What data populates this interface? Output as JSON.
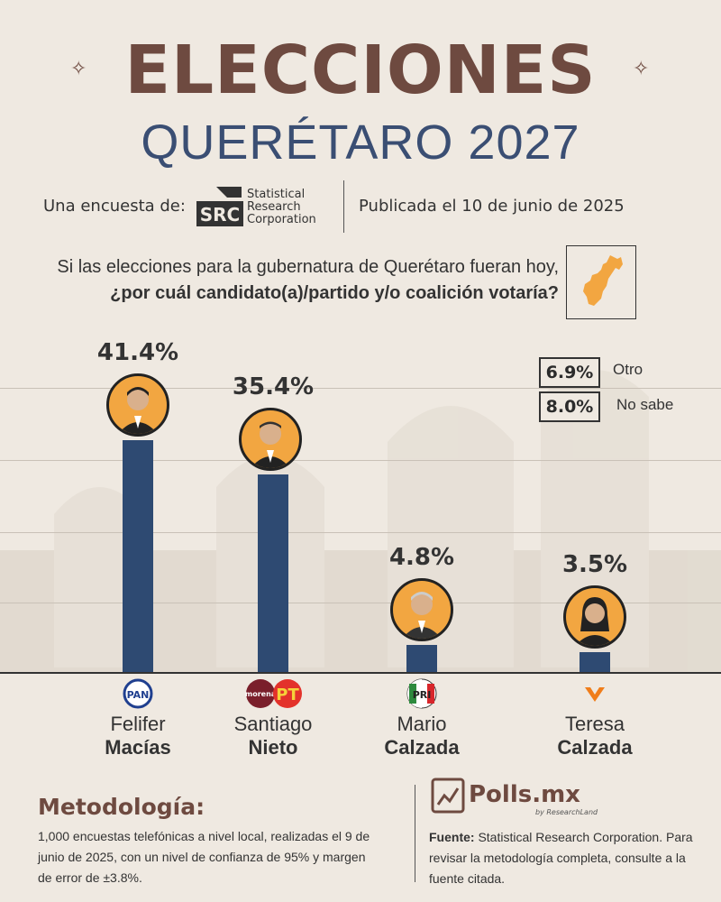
{
  "header": {
    "title_line1": "ELECCIONES",
    "title_line2": "QUERÉTARO 2027",
    "survey_by_label": "Una encuesta de:",
    "logo_letters": "SRC",
    "pollster_line1": "Statistical",
    "pollster_line2": "Research",
    "pollster_line3": "Corporation",
    "published": "Publicada el 10 de junio de 2025"
  },
  "question": {
    "line1": "Si las elecciones para la gubernatura de Querétaro fueran hoy,",
    "line2": "¿por cuál candidato(a)/partido y/o coalición votaría?"
  },
  "other_results": [
    {
      "value": "6.9%",
      "label": "Otro"
    },
    {
      "value": "8.0%",
      "label": "No sabe"
    }
  ],
  "chart_data": {
    "type": "bar",
    "title": "Si las elecciones para la gubernatura de Querétaro fueran hoy, ¿por cuál candidato(a)/partido y/o coalición votaría?",
    "categories": [
      "Felifer Macías",
      "Santiago Nieto",
      "Mario Calzada",
      "Teresa Calzada"
    ],
    "values": [
      41.4,
      35.4,
      4.8,
      3.5
    ],
    "value_labels": [
      "41.4%",
      "35.4%",
      "4.8%",
      "3.5%"
    ],
    "parties": [
      "PAN",
      "Morena-PT",
      "PRI",
      "Movimiento Ciudadano"
    ],
    "first_names": [
      "Felifer",
      "Santiago",
      "Mario",
      "Teresa"
    ],
    "last_names": [
      "Macías",
      "Nieto",
      "Calzada",
      "Calzada"
    ],
    "ylim": [
      0,
      50
    ],
    "xlabel": "",
    "ylabel": "",
    "bar_color": "#2e4a72"
  },
  "parties": {
    "pan": "PAN",
    "morena": "morena",
    "pt": "PT",
    "pri": "PRI"
  },
  "methodology": {
    "title": "Metodología:",
    "text": "1,000 encuestas telefónicas a nivel local, realizadas el 9 de junio de 2025, con un nivel de confianza de 95% y margen de error de ±3.8%."
  },
  "footer": {
    "brand": "Polls.mx",
    "brand_sub": "by ResearchLand",
    "source_label": "Fuente:",
    "source_text": " Statistical Research Corporation. Para revisar la metodología completa, consulte a la fuente citada."
  },
  "colors": {
    "brown": "#6e4a40",
    "navy": "#3a4e73",
    "bar": "#2e4a72",
    "orange": "#f2a641",
    "background": "#efe9e1"
  }
}
